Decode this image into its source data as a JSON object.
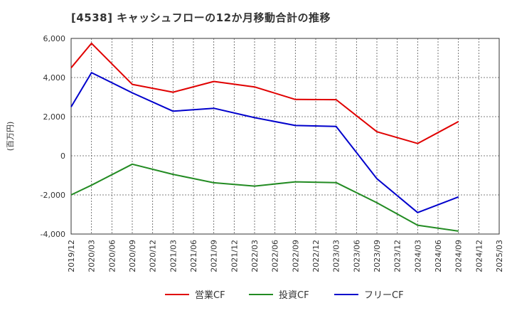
{
  "chart_data": {
    "type": "line",
    "title": "[4538]  キャッシュフローの12か月移動合計の推移",
    "ylabel": "(百万円)",
    "xlabel": "",
    "ylim": [
      -4000,
      6000
    ],
    "yticks": [
      -4000,
      -2000,
      0,
      2000,
      4000,
      6000
    ],
    "ytick_labels": [
      "-4,000",
      "-2,000",
      "0",
      "2,000",
      "4,000",
      "6,000"
    ],
    "x_labels": [
      "2019/12",
      "2020/03",
      "2020/06",
      "2020/09",
      "2020/12",
      "2021/03",
      "2021/06",
      "2021/09",
      "2021/12",
      "2022/03",
      "2022/06",
      "2022/09",
      "2022/12",
      "2023/03",
      "2023/06",
      "2023/09",
      "2023/12",
      "2024/03",
      "2024/06",
      "2024/09",
      "2024/12",
      "2025/03"
    ],
    "grid": true,
    "legend_position": "bottom-center",
    "series": [
      {
        "name": "営業CF",
        "color": "#e00000",
        "points": [
          [
            0,
            4500
          ],
          [
            1,
            5750
          ],
          [
            3,
            3650
          ],
          [
            5,
            3250
          ],
          [
            7,
            3800
          ],
          [
            9,
            3520
          ],
          [
            11,
            2880
          ],
          [
            13,
            2870
          ],
          [
            15,
            1230
          ],
          [
            17,
            630
          ],
          [
            19,
            1750
          ]
        ]
      },
      {
        "name": "投資CF",
        "color": "#228b22",
        "points": [
          [
            0,
            -2000
          ],
          [
            1,
            -1500
          ],
          [
            3,
            -430
          ],
          [
            5,
            -950
          ],
          [
            7,
            -1380
          ],
          [
            9,
            -1550
          ],
          [
            11,
            -1330
          ],
          [
            13,
            -1370
          ],
          [
            15,
            -2400
          ],
          [
            17,
            -3550
          ],
          [
            19,
            -3850
          ]
        ]
      },
      {
        "name": "フリーCF",
        "color": "#0000cc",
        "points": [
          [
            0,
            2500
          ],
          [
            1,
            4250
          ],
          [
            3,
            3220
          ],
          [
            5,
            2280
          ],
          [
            7,
            2430
          ],
          [
            9,
            1950
          ],
          [
            11,
            1550
          ],
          [
            13,
            1500
          ],
          [
            15,
            -1170
          ],
          [
            17,
            -2900
          ],
          [
            19,
            -2100
          ]
        ]
      }
    ]
  }
}
